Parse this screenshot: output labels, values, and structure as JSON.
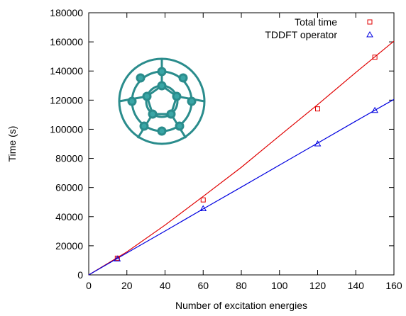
{
  "chart_data": {
    "type": "scatter",
    "x_label": "Number of excitation energies",
    "y_label": "Time (s)",
    "series": [
      {
        "name": "Total time",
        "color": "#e00000",
        "marker": "square",
        "x": [
          15,
          60,
          120,
          150
        ],
        "values": [
          11500,
          51500,
          114000,
          149500
        ]
      },
      {
        "name": "TDDFT operator",
        "color": "#0000e0",
        "marker": "triangle",
        "x": [
          15,
          60,
          120,
          150
        ],
        "values": [
          11000,
          45500,
          90000,
          113000
        ]
      }
    ],
    "fits": [
      {
        "color": "#e00000",
        "x": [
          0,
          20,
          40,
          60,
          80,
          100,
          120,
          140,
          160
        ],
        "values": [
          0,
          15800,
          34200,
          53900,
          73900,
          95500,
          116900,
          139000,
          160500
        ]
      },
      {
        "color": "#0000e0",
        "x": [
          0,
          20,
          40,
          60,
          80,
          100,
          120,
          140,
          160
        ],
        "values": [
          0,
          15100,
          30100,
          45300,
          60300,
          75400,
          90500,
          105600,
          120500
        ]
      }
    ],
    "xlim": [
      0,
      160
    ],
    "xticks": [
      0,
      20,
      40,
      60,
      80,
      100,
      120,
      140,
      160
    ],
    "ylim": [
      0,
      180000
    ],
    "yticks": [
      0,
      20000,
      40000,
      60000,
      80000,
      100000,
      120000,
      140000,
      160000,
      180000
    ],
    "legend": "top-right"
  }
}
